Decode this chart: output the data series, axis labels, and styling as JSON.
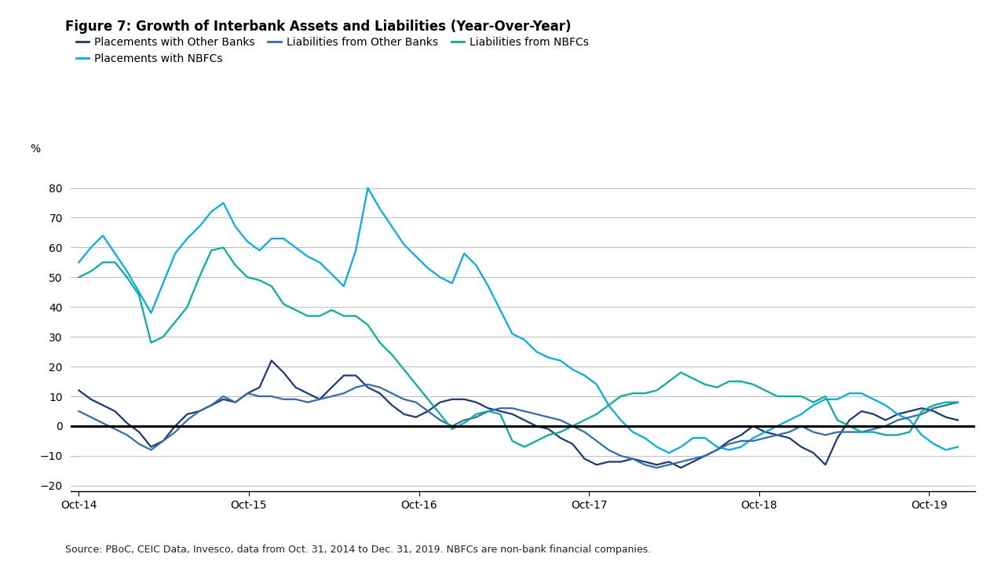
{
  "title": "Figure 7: Growth of Interbank Assets and Liabilities (Year-Over-Year)",
  "ylabel": "%",
  "source_text": "Source: PBoC, CEIC Data, Invesco, data from Oct. 31, 2014 to Dec. 31, 2019. NBFCs are non-bank financial companies.",
  "background_color": "#ffffff",
  "ylim": [
    -22,
    90
  ],
  "yticks": [
    -20,
    -10,
    0,
    10,
    20,
    30,
    40,
    50,
    60,
    70,
    80
  ],
  "xtick_labels": [
    "Oct-14",
    "Oct-15",
    "Oct-16",
    "Oct-17",
    "Oct-18",
    "Oct-19"
  ],
  "legend_entries": [
    {
      "label": "Placements with Other Banks",
      "color": "#1a3a7c"
    },
    {
      "label": "Placements with NBFCs",
      "color": "#00aeef"
    },
    {
      "label": "Liabilities from Other Banks",
      "color": "#2e6db4"
    },
    {
      "label": "Liabilities from NBFCs",
      "color": "#00b398"
    }
  ],
  "series": {
    "placements_other_banks": [
      12,
      9,
      7,
      5,
      1,
      -2,
      -7,
      -5,
      0,
      4,
      5,
      7,
      9,
      8,
      11,
      13,
      22,
      18,
      13,
      11,
      9,
      13,
      17,
      17,
      13,
      11,
      7,
      4,
      3,
      5,
      8,
      9,
      9,
      8,
      6,
      5,
      4,
      2,
      0,
      -1,
      -4,
      -6,
      -11,
      -13,
      -12,
      -12,
      -11,
      -12,
      -13,
      -12,
      -14,
      -12,
      -10,
      -8,
      -5,
      -3,
      0,
      -2,
      -3,
      -4,
      -7,
      -9,
      -13,
      -4,
      2,
      5,
      4,
      2,
      4,
      5,
      6,
      5,
      3,
      2
    ],
    "placements_nbfcs": [
      55,
      60,
      64,
      58,
      52,
      45,
      38,
      48,
      58,
      63,
      67,
      72,
      75,
      67,
      62,
      59,
      63,
      63,
      60,
      57,
      55,
      51,
      47,
      59,
      80,
      73,
      67,
      61,
      57,
      53,
      50,
      48,
      58,
      54,
      47,
      39,
      31,
      29,
      25,
      23,
      22,
      19,
      17,
      14,
      7,
      2,
      -2,
      -4,
      -7,
      -9,
      -7,
      -4,
      -4,
      -7,
      -8,
      -7,
      -4,
      -2,
      0,
      2,
      4,
      7,
      9,
      9,
      11,
      11,
      9,
      7,
      4,
      2,
      -3,
      -6,
      -8,
      -7
    ],
    "liabilities_other_banks": [
      5,
      3,
      1,
      -1,
      -3,
      -6,
      -8,
      -5,
      -2,
      2,
      5,
      7,
      10,
      8,
      11,
      10,
      10,
      9,
      9,
      8,
      9,
      10,
      11,
      13,
      14,
      13,
      11,
      9,
      8,
      5,
      2,
      0,
      2,
      3,
      5,
      6,
      6,
      5,
      4,
      3,
      2,
      0,
      -2,
      -5,
      -8,
      -10,
      -11,
      -13,
      -14,
      -13,
      -12,
      -11,
      -10,
      -8,
      -6,
      -5,
      -5,
      -4,
      -3,
      -2,
      0,
      -2,
      -3,
      -2,
      -2,
      -2,
      -1,
      0,
      2,
      3,
      4,
      6,
      7,
      8
    ],
    "liabilities_nbfcs": [
      50,
      52,
      55,
      55,
      50,
      44,
      28,
      30,
      35,
      40,
      50,
      59,
      60,
      54,
      50,
      49,
      47,
      41,
      39,
      37,
      37,
      39,
      37,
      37,
      34,
      28,
      24,
      19,
      14,
      9,
      4,
      -1,
      1,
      4,
      5,
      4,
      -5,
      -7,
      -5,
      -3,
      -2,
      0,
      2,
      4,
      7,
      10,
      11,
      11,
      12,
      15,
      18,
      16,
      14,
      13,
      15,
      15,
      14,
      12,
      10,
      10,
      10,
      8,
      10,
      2,
      0,
      -2,
      -2,
      -3,
      -3,
      -2,
      5,
      7,
      8,
      8
    ]
  },
  "n_points": 74,
  "x_start_year": 2014.75,
  "x_end_year": 2019.92
}
